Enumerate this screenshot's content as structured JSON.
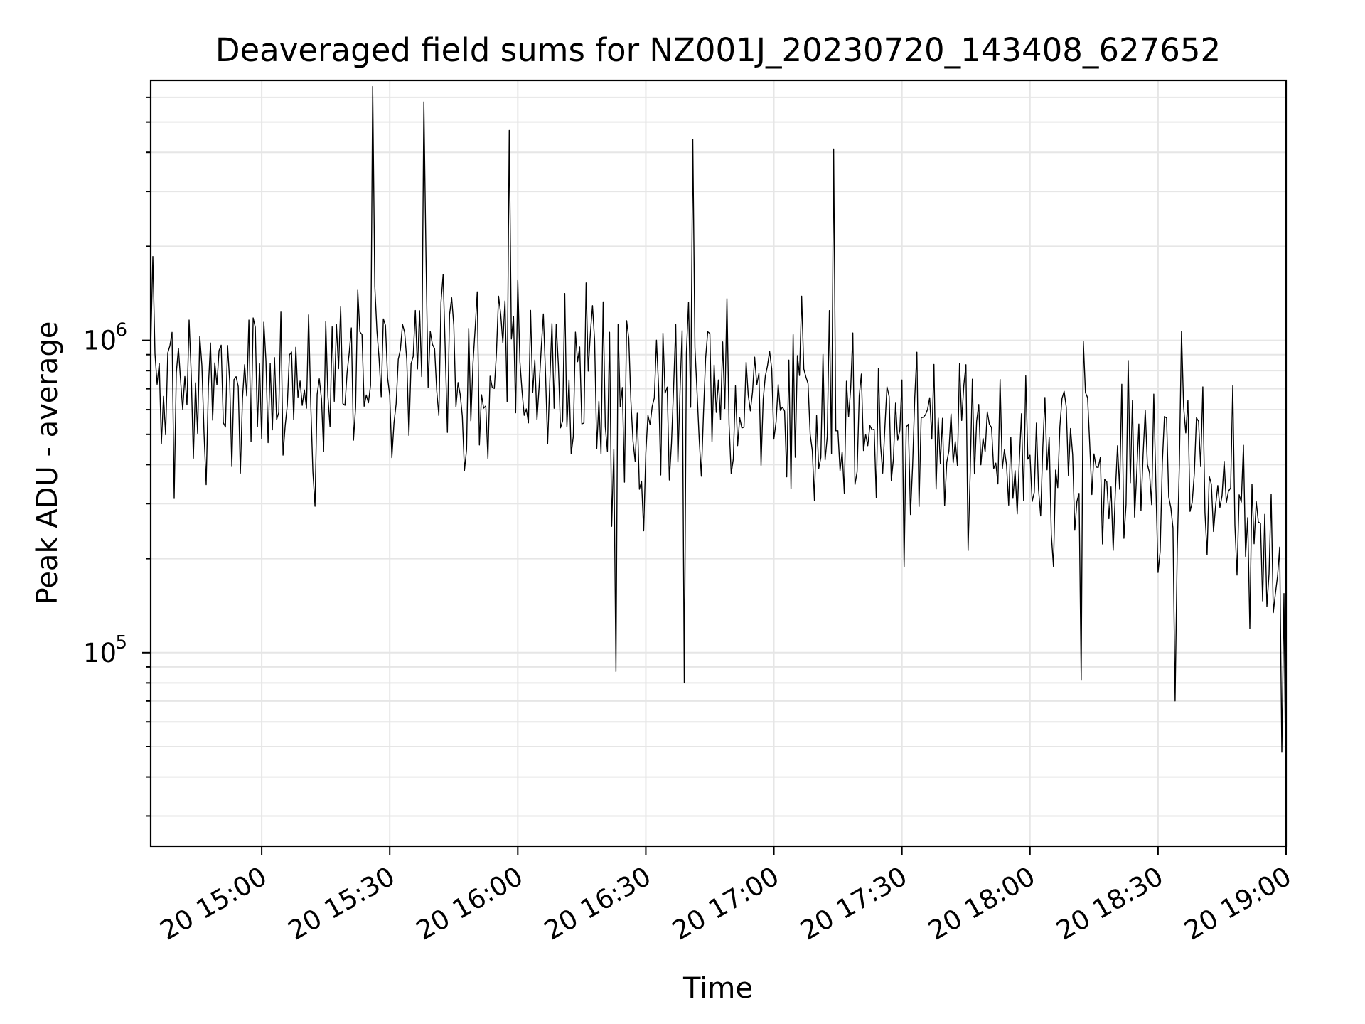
{
  "chart_data": {
    "type": "line",
    "title": "Deaveraged field sums for NZ001J_20230720_143408_627652",
    "xlabel": "Time",
    "ylabel": "Peak ADU - average",
    "x_is_time": true,
    "xlim": [
      "2023-07-20 14:34",
      "2023-07-20 19:00"
    ],
    "ylim": [
      24000,
      6800000
    ],
    "yscale": "log",
    "grid": true,
    "x_tick_labels": [
      "20 15:00",
      "20 15:30",
      "20 16:00",
      "20 16:30",
      "20 17:00",
      "20 17:30",
      "20 18:00",
      "20 18:30",
      "20 19:00"
    ],
    "y_tick_labels": [
      {
        "base": "10",
        "exp": "5",
        "value": 100000
      },
      {
        "base": "10",
        "exp": "6",
        "value": 1000000
      }
    ],
    "series": [
      {
        "color": "#000000",
        "start": "2023-07-20 14:34",
        "end": "2023-07-20 19:00",
        "sample_step_seconds": 30,
        "points_estimated": 532,
        "envelope": [
          {
            "t": "14:34",
            "median": 750000
          },
          {
            "t": "14:45",
            "median": 800000
          },
          {
            "t": "15:00",
            "median": 750000
          },
          {
            "t": "15:15",
            "median": 650000
          },
          {
            "t": "15:30",
            "median": 900000
          },
          {
            "t": "15:45",
            "median": 800000
          },
          {
            "t": "16:00",
            "median": 850000
          },
          {
            "t": "16:15",
            "median": 720000
          },
          {
            "t": "16:30",
            "median": 620000
          },
          {
            "t": "16:45",
            "median": 700000
          },
          {
            "t": "17:00",
            "median": 600000
          },
          {
            "t": "17:15",
            "median": 600000
          },
          {
            "t": "17:30",
            "median": 560000
          },
          {
            "t": "17:45",
            "median": 480000
          },
          {
            "t": "18:00",
            "median": 440000
          },
          {
            "t": "18:15",
            "median": 380000
          },
          {
            "t": "18:30",
            "median": 400000
          },
          {
            "t": "18:45",
            "median": 420000
          },
          {
            "t": "18:55",
            "median": 230000
          },
          {
            "t": "19:00",
            "median": 150000
          }
        ],
        "extremes": [
          {
            "t": "15:26",
            "value": 6500000
          },
          {
            "t": "15:38",
            "value": 5800000
          },
          {
            "t": "15:58",
            "value": 4700000
          },
          {
            "t": "16:41",
            "value": 4400000
          },
          {
            "t": "17:14",
            "value": 4100000
          },
          {
            "t": "16:23",
            "value": 87000
          },
          {
            "t": "16:39",
            "value": 80000
          },
          {
            "t": "18:12",
            "value": 82000
          },
          {
            "t": "18:34",
            "value": 70000
          },
          {
            "t": "18:59",
            "value": 48000
          },
          {
            "t": "19:00",
            "value": 28000
          }
        ]
      }
    ]
  }
}
